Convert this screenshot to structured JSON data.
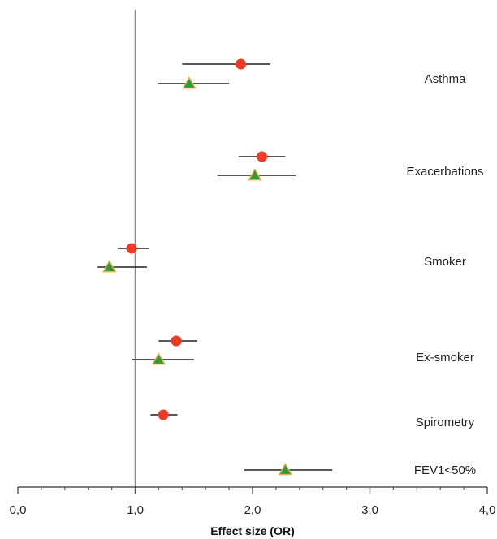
{
  "chart_data": {
    "type": "forest",
    "xlabel": "Effect size (OR)",
    "xlim": [
      0,
      4
    ],
    "xticks": [
      "0,0",
      "1,0",
      "2,0",
      "3,0",
      "4,0"
    ],
    "xtick_values": [
      0,
      1,
      2,
      3,
      4
    ],
    "reference_line": 1,
    "marker_colors": {
      "circle": "#ee3a24",
      "triangle": "#2e9a3c",
      "triangle_edge": "#e8b24a"
    },
    "categories": [
      {
        "label": "Asthma",
        "estimates": [
          {
            "marker": "circle",
            "value": 1.9,
            "ci": [
              1.4,
              2.15
            ]
          },
          {
            "marker": "triangle",
            "value": 1.46,
            "ci": [
              1.19,
              1.8
            ]
          }
        ]
      },
      {
        "label": "Exacerbations",
        "estimates": [
          {
            "marker": "circle",
            "value": 2.08,
            "ci": [
              1.88,
              2.28
            ]
          },
          {
            "marker": "triangle",
            "value": 2.02,
            "ci": [
              1.7,
              2.37
            ]
          }
        ]
      },
      {
        "label": "Smoker",
        "estimates": [
          {
            "marker": "circle",
            "value": 0.97,
            "ci": [
              0.85,
              1.12
            ]
          },
          {
            "marker": "triangle",
            "value": 0.78,
            "ci": [
              0.68,
              1.1
            ]
          }
        ]
      },
      {
        "label": "Ex-smoker",
        "estimates": [
          {
            "marker": "circle",
            "value": 1.35,
            "ci": [
              1.2,
              1.53
            ]
          },
          {
            "marker": "triangle",
            "value": 1.2,
            "ci": [
              0.97,
              1.5
            ]
          }
        ]
      },
      {
        "label": "Spirometry",
        "estimates": [
          {
            "marker": "circle",
            "value": 1.24,
            "ci": [
              1.13,
              1.36
            ]
          }
        ]
      },
      {
        "label": "FEV1<50%",
        "estimates": [
          {
            "marker": "triangle",
            "value": 2.28,
            "ci": [
              1.93,
              2.68
            ]
          }
        ]
      }
    ]
  }
}
